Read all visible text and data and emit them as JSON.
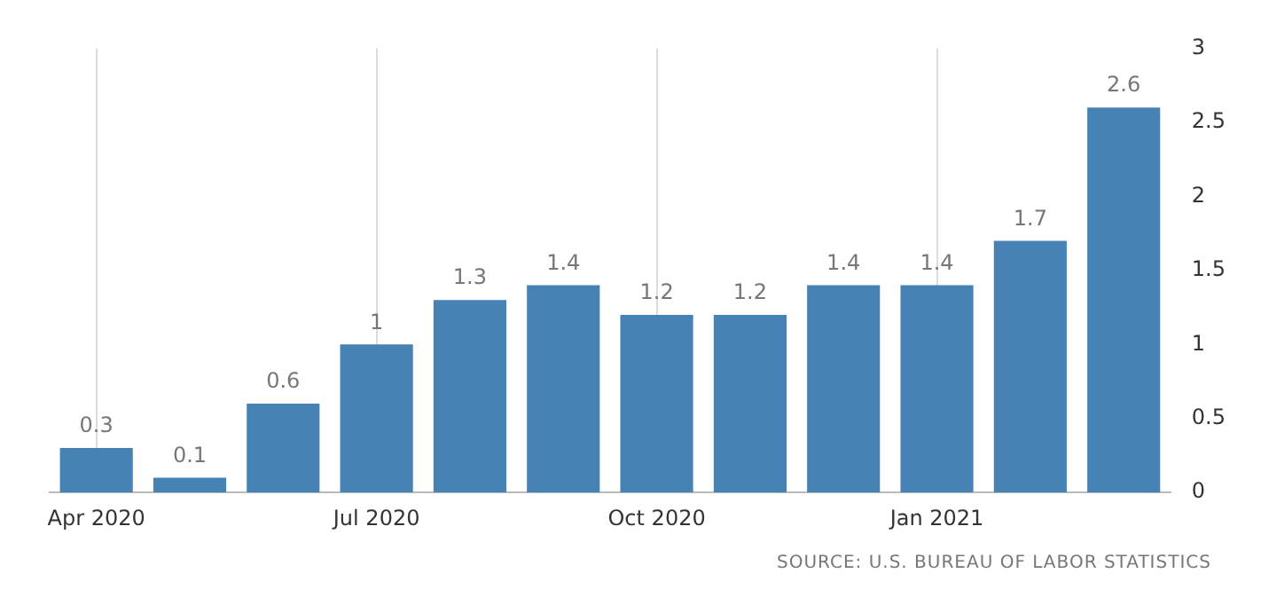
{
  "chart_data": {
    "type": "bar",
    "categories": [
      "Apr 2020",
      null,
      null,
      "Jul 2020",
      null,
      null,
      "Oct 2020",
      null,
      null,
      "Jan 2021",
      null,
      null
    ],
    "values": [
      0.3,
      0.1,
      0.6,
      1,
      1.3,
      1.4,
      1.2,
      1.2,
      1.4,
      1.4,
      1.7,
      2.6
    ],
    "color": "#4682b4",
    "ylim": [
      0,
      3
    ],
    "yticks": [
      0,
      0.5,
      1,
      1.5,
      2,
      2.5,
      3
    ],
    "grid": "x",
    "data_labels": true,
    "legend": false,
    "annotations": [
      "SOURCE: U.S. BUREAU OF LABOR STATISTICS"
    ]
  }
}
